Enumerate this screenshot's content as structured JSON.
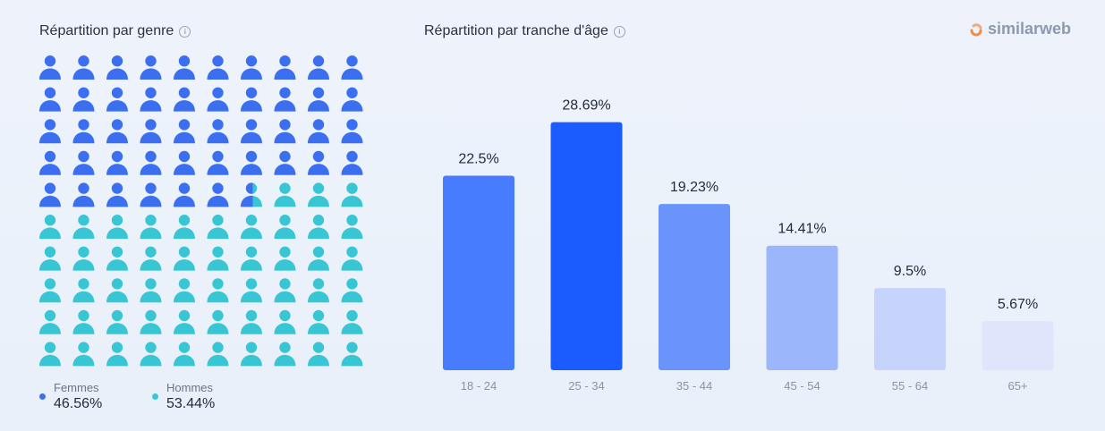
{
  "logo": {
    "text": "similarweb",
    "icon": "similarweb-logo-icon"
  },
  "gender": {
    "title": "Répartition par genre",
    "info_icon": "info-icon",
    "grid": {
      "rows": 10,
      "cols": 10
    },
    "colors": {
      "female": "#3b6ff0",
      "male": "#39c6d4"
    },
    "legend": [
      {
        "name": "Femmes",
        "value_label": "46.56%",
        "value": 46.56
      },
      {
        "name": "Hommes",
        "value_label": "53.44%",
        "value": 53.44
      }
    ]
  },
  "chart_data": {
    "type": "bar",
    "title": "Répartition par tranche d'âge",
    "categories": [
      "18 - 24",
      "25 - 34",
      "35 - 44",
      "45 - 54",
      "55 - 64",
      "65+"
    ],
    "values": [
      22.5,
      28.69,
      19.23,
      14.41,
      9.5,
      5.67
    ],
    "data_labels": [
      "22.5%",
      "28.69%",
      "19.23%",
      "14.41%",
      "9.5%",
      "5.67%"
    ],
    "ylim": [
      0,
      30
    ],
    "grid": false,
    "bar_colors": [
      "#477cff",
      "#1a5cff",
      "#6b94fb",
      "#9bb6fb",
      "#c6d4fb",
      "#dfe6fb"
    ]
  }
}
